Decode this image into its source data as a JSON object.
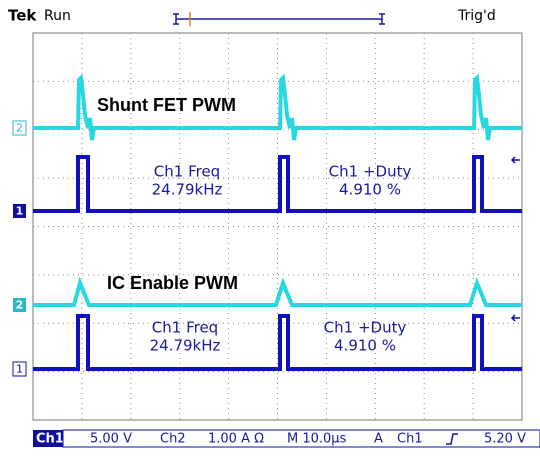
{
  "header": {
    "brand": "Tek",
    "status": "Run",
    "trigger_state": "Trig'd",
    "trigger_marker": "T"
  },
  "panels": [
    {
      "title": "Shunt FET PWM",
      "channel_markers": [
        "2",
        "1"
      ],
      "measurements": [
        {
          "name": "Ch1 Freq",
          "value": "24.79kHz"
        },
        {
          "name": "Ch1 +Duty",
          "value": "4.910 %"
        }
      ]
    },
    {
      "title": "IC Enable PWM",
      "channel_markers": [
        "2",
        "1"
      ],
      "measurements": [
        {
          "name": "Ch1 Freq",
          "value": "24.79kHz"
        },
        {
          "name": "Ch1 +Duty",
          "value": "4.910 %"
        }
      ]
    }
  ],
  "status_bar": {
    "ch1": "Ch1",
    "ch1_scale": "5.00 V",
    "ch2": "Ch2",
    "ch2_scale": "1.00 A Ω",
    "timebase": "M 10.0µs",
    "trigger_mode": "A",
    "trigger_source": "Ch1",
    "trigger_level": "5.20 V"
  }
}
